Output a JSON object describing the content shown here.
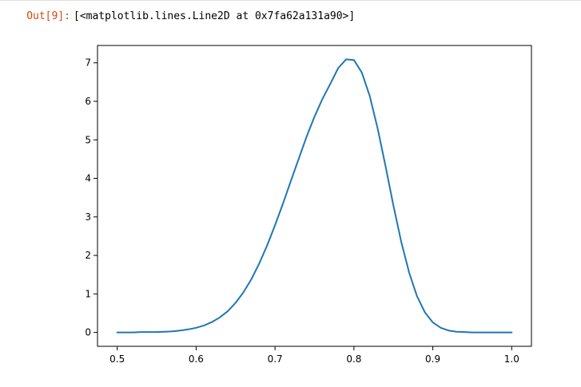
{
  "cell": {
    "prompt": "Out[9]:",
    "output_text": "[<matplotlib.lines.Line2D at 0x7fa62a131a90>]"
  },
  "chart_data": {
    "type": "line",
    "title": "",
    "xlabel": "",
    "ylabel": "",
    "xlim": [
      0.475,
      1.025
    ],
    "ylim": [
      -0.36,
      7.45
    ],
    "xticks": [
      0.5,
      0.6,
      0.7,
      0.8,
      0.9,
      1.0
    ],
    "xtick_labels": [
      "0.5",
      "0.6",
      "0.7",
      "0.8",
      "0.9",
      "1.0"
    ],
    "yticks": [
      0,
      1,
      2,
      3,
      4,
      5,
      6,
      7
    ],
    "ytick_labels": [
      "0",
      "1",
      "2",
      "3",
      "4",
      "5",
      "6",
      "7"
    ],
    "grid": false,
    "line_color": "#1f77b4",
    "series": [
      {
        "x": [
          0.5,
          0.51,
          0.52,
          0.53,
          0.54,
          0.55,
          0.56,
          0.57,
          0.58,
          0.59,
          0.6,
          0.61,
          0.62,
          0.63,
          0.64,
          0.65,
          0.66,
          0.67,
          0.68,
          0.69,
          0.7,
          0.71,
          0.72,
          0.73,
          0.74,
          0.75,
          0.76,
          0.77,
          0.78,
          0.79,
          0.8,
          0.81,
          0.82,
          0.83,
          0.84,
          0.85,
          0.86,
          0.87,
          0.88,
          0.89,
          0.9,
          0.91,
          0.92,
          0.93,
          0.94,
          0.95,
          0.96,
          0.97,
          0.98,
          0.99,
          1.0
        ],
        "y": [
          0.0,
          0.0,
          0.0,
          0.01,
          0.01,
          0.01,
          0.02,
          0.03,
          0.05,
          0.08,
          0.12,
          0.18,
          0.27,
          0.39,
          0.55,
          0.77,
          1.04,
          1.38,
          1.79,
          2.26,
          2.78,
          3.34,
          3.93,
          4.51,
          5.08,
          5.6,
          6.06,
          6.45,
          6.86,
          7.09,
          7.07,
          6.75,
          6.14,
          5.3,
          4.32,
          3.3,
          2.35,
          1.55,
          0.94,
          0.52,
          0.26,
          0.12,
          0.05,
          0.02,
          0.01,
          0.0,
          0.0,
          0.0,
          0.0,
          0.0,
          0.0
        ]
      }
    ]
  }
}
